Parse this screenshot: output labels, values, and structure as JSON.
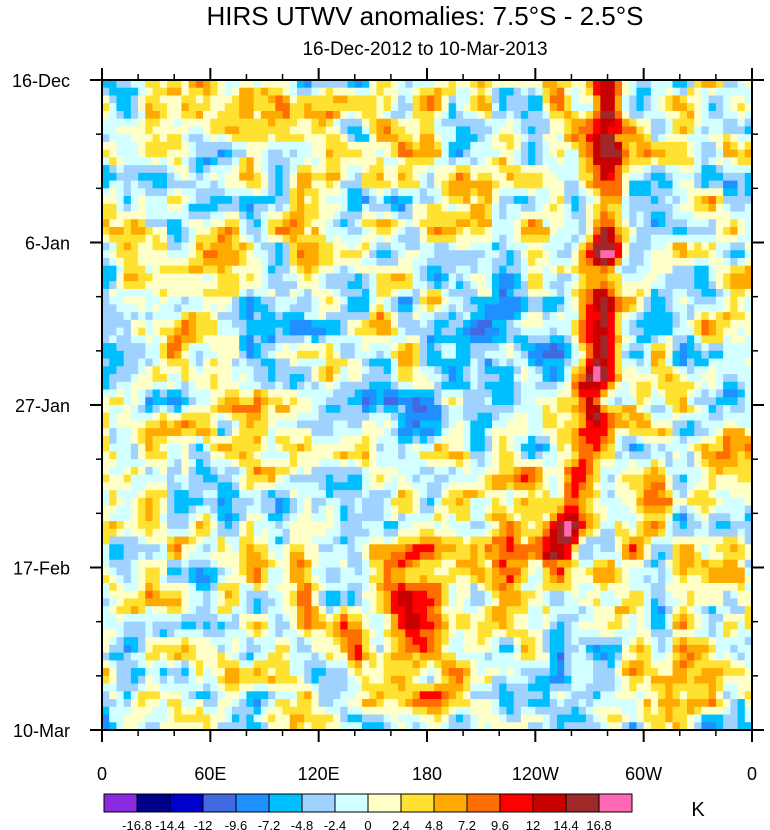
{
  "chart_data": {
    "type": "heatmap",
    "title": "HIRS UTWV anomalies: 7.5°S - 2.5°S",
    "subtitle": "16-Dec-2012 to 10-Mar-2013",
    "xlabel": "",
    "ylabel": "",
    "x_tick_labels": [
      "0",
      "60E",
      "120E",
      "180",
      "120W",
      "60W",
      "0"
    ],
    "x_ticks_deg": [
      0,
      60,
      120,
      180,
      240,
      300,
      360
    ],
    "y_tick_labels": [
      "16-Dec",
      "6-Jan",
      "27-Jan",
      "17-Feb",
      "10-Mar"
    ],
    "y_ticks_day": [
      0,
      21,
      42,
      63,
      84
    ],
    "x_range_deg": [
      0,
      360
    ],
    "y_range_days": [
      0,
      84
    ],
    "colorbar": {
      "unit": "K",
      "levels": [
        "-16.8",
        "-14.4",
        "-12",
        "-9.6",
        "-7.2",
        "-4.8",
        "-2.4",
        "0",
        "2.4",
        "4.8",
        "7.2",
        "9.6",
        "12",
        "14.4",
        "16.8"
      ],
      "colors": [
        "#8a2be2",
        "#00008b",
        "#0000cd",
        "#4169e1",
        "#1e90ff",
        "#00bfff",
        "#a0d2ff",
        "#d2ffff",
        "#ffffc8",
        "#ffe132",
        "#ffaa00",
        "#ff6e00",
        "#ff0000",
        "#c80000",
        "#a02828",
        "#ff69b4"
      ]
    },
    "features": [
      {
        "name": "eastern Pacific propagating positive anomaly ridge",
        "lon_deg": [
          280,
          278,
          272,
          262
        ],
        "day": [
          8,
          25,
          42,
          55
        ],
        "anomaly_K": 12
      },
      {
        "name": "central Pacific positive anomaly late Feb",
        "lon_deg": 170,
        "day": 70,
        "anomaly_K": 12
      },
      {
        "name": "central/east Pacific negative anomaly Jan",
        "lon_deg": 220,
        "day": 35,
        "anomaly_K": -12
      }
    ]
  }
}
